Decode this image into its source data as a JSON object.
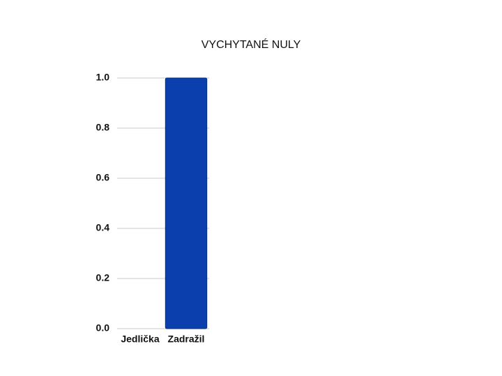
{
  "chart_data": {
    "type": "bar",
    "title": "VYCHYTANÉ NULY",
    "categories": [
      "Jedlička",
      "Zadražil"
    ],
    "values": [
      0,
      1
    ],
    "color": "#0a3fad",
    "ylim": [
      0,
      1
    ],
    "yticks": [
      {
        "value": 0,
        "label": "0.0"
      },
      0.2,
      0.4,
      0.6,
      0.8,
      {
        "value": 1,
        "label": "1.0"
      }
    ],
    "grid": true
  }
}
